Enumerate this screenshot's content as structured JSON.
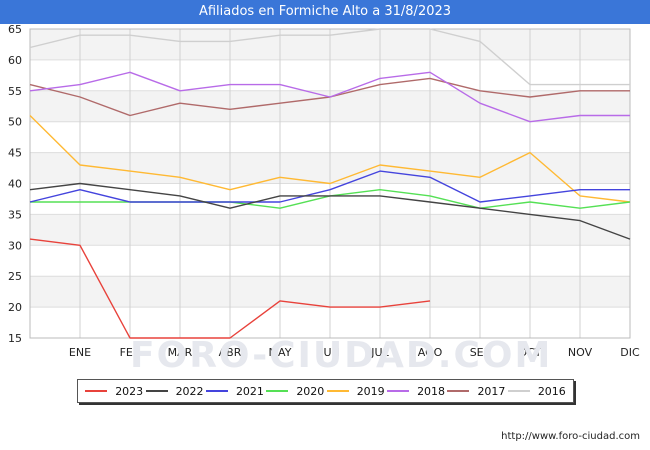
{
  "header": {
    "title": "Afiliados en Formiche Alto a 31/8/2023"
  },
  "watermark": "FORO-CIUDAD.COM",
  "footer": {
    "url": "http://www.foro-ciudad.com"
  },
  "chart_data": {
    "type": "line",
    "title": "Afiliados en Formiche Alto a 31/8/2023",
    "xlabel": "",
    "ylabel": "",
    "ylim": [
      15,
      65
    ],
    "yticks": [
      15,
      20,
      25,
      30,
      35,
      40,
      45,
      50,
      55,
      60,
      65
    ],
    "categories": [
      "",
      "ENE",
      "FEB",
      "MAR",
      "ABR",
      "MAY",
      "JUN",
      "JUL",
      "AGO",
      "SEP",
      "OCT",
      "NOV",
      "DIC"
    ],
    "series": [
      {
        "name": "2023",
        "color": "#e8423b",
        "values": [
          31,
          30,
          15,
          15,
          15,
          21,
          20,
          20,
          21,
          null,
          null,
          null,
          null
        ]
      },
      {
        "name": "2022",
        "color": "#444444",
        "values": [
          39,
          40,
          39,
          38,
          36,
          38,
          38,
          38,
          37,
          36,
          35,
          34,
          31
        ]
      },
      {
        "name": "2021",
        "color": "#4444dd",
        "values": [
          37,
          39,
          37,
          37,
          37,
          37,
          39,
          42,
          41,
          37,
          38,
          39,
          39
        ]
      },
      {
        "name": "2020",
        "color": "#55e055",
        "values": [
          37,
          37,
          37,
          37,
          37,
          36,
          38,
          39,
          38,
          36,
          37,
          36,
          37
        ]
      },
      {
        "name": "2019",
        "color": "#ffb933",
        "values": [
          51,
          43,
          42,
          41,
          39,
          41,
          40,
          43,
          42,
          41,
          45,
          38,
          37
        ]
      },
      {
        "name": "2018",
        "color": "#b86be8",
        "values": [
          55,
          56,
          58,
          55,
          56,
          56,
          54,
          57,
          58,
          53,
          50,
          51,
          51
        ]
      },
      {
        "name": "2017",
        "color": "#b06a6a",
        "values": [
          56,
          54,
          51,
          53,
          52,
          53,
          54,
          56,
          57,
          55,
          54,
          55,
          55
        ]
      },
      {
        "name": "2016",
        "color": "#cfcfcf",
        "values": [
          62,
          64,
          64,
          63,
          63,
          64,
          64,
          65,
          65,
          63,
          56,
          56,
          56
        ]
      }
    ],
    "grid": true,
    "legend": "bottom"
  }
}
